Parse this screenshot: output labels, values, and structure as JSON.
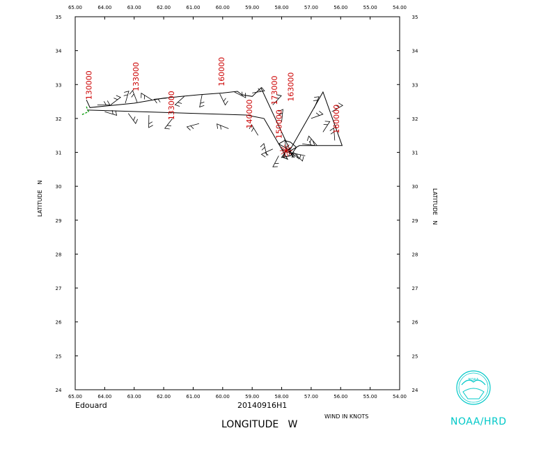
{
  "map": {
    "storm_name": "Edouard",
    "flight_id": "20140916H1",
    "x_axis_title": "LONGITUDE   W",
    "wind_units": "WIND IN KNOTS",
    "y_axis_left_title": "LATITUDE   N",
    "y_axis_right_title": "LATITUDE   N",
    "lon_ticks": [
      "65.00",
      "64.00",
      "63.00",
      "62.00",
      "61.00",
      "60.00",
      "59.00",
      "58.00",
      "57.00",
      "56.00",
      "55.00",
      "54.00"
    ],
    "lat_ticks": [
      "24",
      "25",
      "26",
      "27",
      "28",
      "29",
      "30",
      "31",
      "32",
      "33",
      "34",
      "35"
    ],
    "lon_range": [
      -65,
      -54
    ],
    "lat_range": [
      24,
      35
    ],
    "track_color": "#000000",
    "time_label_color": "#cc0000",
    "start_segment_color": "#009900",
    "time_labels": [
      {
        "text": "130000",
        "lon": -64.45,
        "lat": 32.55
      },
      {
        "text": "133000",
        "lon": -62.85,
        "lat": 32.8
      },
      {
        "text": "133000",
        "lon": -61.65,
        "lat": 31.95
      },
      {
        "text": "160000",
        "lon": -59.95,
        "lat": 32.95
      },
      {
        "text": "140000",
        "lon": -59.0,
        "lat": 31.7
      },
      {
        "text": "173000",
        "lon": -58.15,
        "lat": 32.4
      },
      {
        "text": "163000",
        "lon": -57.6,
        "lat": 32.5
      },
      {
        "text": "150000",
        "lon": -58.0,
        "lat": 31.4
      },
      {
        "text": "160000",
        "lon": -56.05,
        "lat": 31.55
      }
    ]
  },
  "branding": {
    "org_label": "NOAA/HRD",
    "logo_text": "NOAA",
    "logo_color": "#00c8c8"
  }
}
